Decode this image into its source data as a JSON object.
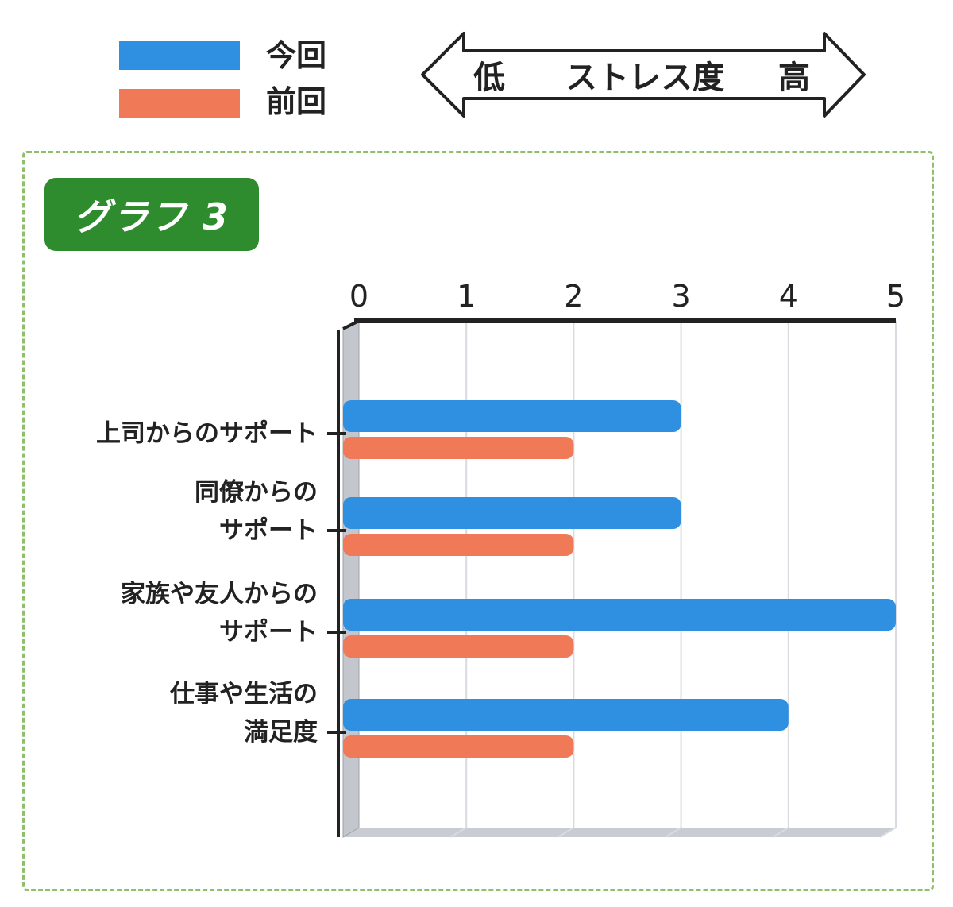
{
  "legend": {
    "items": [
      {
        "label": "今回",
        "color": "#2f8fe0"
      },
      {
        "label": "前回",
        "color": "#f07a58"
      }
    ]
  },
  "scale": {
    "low": "低",
    "title": "ストレス度",
    "high": "高"
  },
  "badge": "グラフ 3",
  "chart_data": {
    "type": "bar",
    "orientation": "horizontal",
    "categories": [
      [
        "上司からのサポート"
      ],
      [
        "同僚からの",
        "サポート"
      ],
      [
        "家族や友人からの",
        "サポート"
      ],
      [
        "仕事や生活の",
        "満足度"
      ]
    ],
    "series": [
      {
        "name": "今回",
        "color": "#2f8fe0",
        "values": [
          3,
          3,
          5,
          4
        ]
      },
      {
        "name": "前回",
        "color": "#f07a58",
        "values": [
          2,
          2,
          2,
          2
        ]
      }
    ],
    "xlim": [
      0,
      5
    ],
    "ticks": [
      0,
      1,
      2,
      3,
      4,
      5
    ],
    "grid": true,
    "legend_position": "top-left"
  }
}
